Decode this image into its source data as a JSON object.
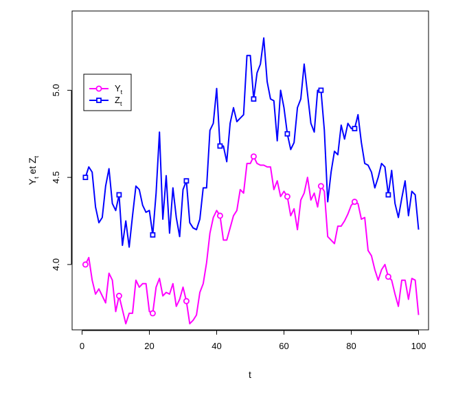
{
  "chart_data": {
    "type": "line",
    "xlabel": "t",
    "ylabel": {
      "prefix": "Y",
      "prefix_sub": "t",
      "mid": "et",
      "suffix": "Z",
      "suffix_sub": "t"
    },
    "xlim": [
      -2.96,
      102.96
    ],
    "ylim": [
      3.625,
      5.455
    ],
    "x_ticks": [
      0,
      20,
      40,
      60,
      80,
      100
    ],
    "y_ticks": [
      4.0,
      4.5,
      5.0
    ],
    "x_tick_labels": [
      "0",
      "20",
      "40",
      "60",
      "80",
      "100"
    ],
    "y_tick_labels": [
      "4.0",
      "4.5",
      "5.0"
    ],
    "legend_position": "top-left",
    "x": [
      1,
      2,
      3,
      4,
      5,
      6,
      7,
      8,
      9,
      10,
      11,
      12,
      13,
      14,
      15,
      16,
      17,
      18,
      19,
      20,
      21,
      22,
      23,
      24,
      25,
      26,
      27,
      28,
      29,
      30,
      31,
      32,
      33,
      34,
      35,
      36,
      37,
      38,
      39,
      40,
      41,
      42,
      43,
      44,
      45,
      46,
      47,
      48,
      49,
      50,
      51,
      52,
      53,
      54,
      55,
      56,
      57,
      58,
      59,
      60,
      61,
      62,
      63,
      64,
      65,
      66,
      67,
      68,
      69,
      70,
      71,
      72,
      73,
      74,
      75,
      76,
      77,
      78,
      79,
      80,
      81,
      82,
      83,
      84,
      85,
      86,
      87,
      88,
      89,
      90,
      91,
      92,
      93,
      94,
      95,
      96,
      97,
      98,
      99,
      100
    ],
    "series": [
      {
        "name": "Y",
        "name_sub": "t",
        "color": "#ff00ff",
        "marker": "circle",
        "marker_every": 10,
        "values": [
          4.0,
          4.04,
          3.91,
          3.83,
          3.86,
          3.82,
          3.78,
          3.95,
          3.91,
          3.73,
          3.82,
          3.74,
          3.66,
          3.72,
          3.72,
          3.91,
          3.87,
          3.89,
          3.89,
          3.73,
          3.72,
          3.87,
          3.92,
          3.82,
          3.84,
          3.83,
          3.89,
          3.76,
          3.8,
          3.87,
          3.79,
          3.66,
          3.68,
          3.71,
          3.84,
          3.89,
          4.01,
          4.18,
          4.27,
          4.31,
          4.28,
          4.14,
          4.14,
          4.21,
          4.28,
          4.31,
          4.43,
          4.41,
          4.58,
          4.58,
          4.62,
          4.58,
          4.57,
          4.57,
          4.56,
          4.56,
          4.43,
          4.48,
          4.39,
          4.42,
          4.39,
          4.28,
          4.32,
          4.2,
          4.37,
          4.41,
          4.5,
          4.37,
          4.41,
          4.33,
          4.45,
          4.42,
          4.16,
          4.14,
          4.12,
          4.22,
          4.22,
          4.25,
          4.29,
          4.34,
          4.36,
          4.35,
          4.26,
          4.27,
          4.08,
          4.05,
          3.97,
          3.91,
          3.97,
          4.0,
          3.93,
          3.91,
          3.83,
          3.76,
          3.91,
          3.91,
          3.8,
          3.92,
          3.91,
          3.71
        ]
      },
      {
        "name": "Z",
        "name_sub": "t",
        "color": "#0000ff",
        "marker": "square",
        "marker_every": 10,
        "values": [
          4.5,
          4.56,
          4.53,
          4.33,
          4.24,
          4.27,
          4.45,
          4.55,
          4.35,
          4.31,
          4.4,
          4.11,
          4.25,
          4.1,
          4.28,
          4.45,
          4.43,
          4.34,
          4.3,
          4.31,
          4.17,
          4.41,
          4.76,
          4.26,
          4.51,
          4.18,
          4.44,
          4.27,
          4.16,
          4.43,
          4.48,
          4.24,
          4.21,
          4.2,
          4.26,
          4.44,
          4.44,
          4.77,
          4.81,
          5.01,
          4.68,
          4.68,
          4.59,
          4.81,
          4.9,
          4.82,
          4.84,
          4.86,
          5.2,
          5.2,
          4.95,
          5.1,
          5.15,
          5.3,
          5.05,
          4.95,
          4.94,
          4.71,
          5.0,
          4.9,
          4.75,
          4.66,
          4.7,
          4.9,
          4.95,
          5.15,
          4.98,
          4.81,
          4.76,
          5.0,
          5.0,
          4.77,
          4.36,
          4.53,
          4.65,
          4.63,
          4.8,
          4.72,
          4.81,
          4.78,
          4.78,
          4.86,
          4.7,
          4.58,
          4.57,
          4.53,
          4.44,
          4.5,
          4.58,
          4.56,
          4.4,
          4.54,
          4.35,
          4.27,
          4.38,
          4.48,
          4.28,
          4.42,
          4.4,
          4.2
        ]
      }
    ]
  }
}
